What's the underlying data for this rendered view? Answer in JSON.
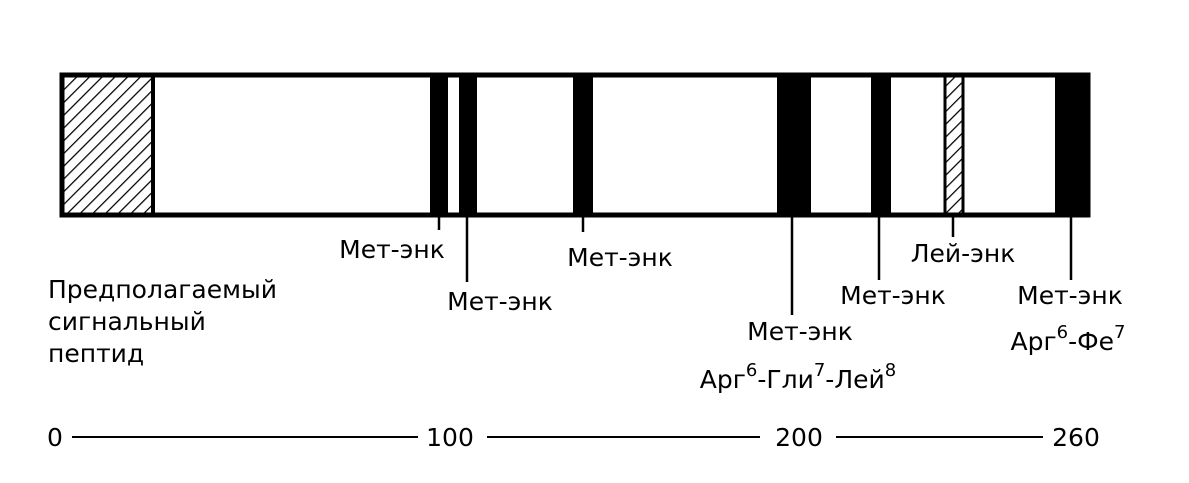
{
  "signal_peptide": {
    "lines": [
      "Предполагаемый",
      "сигнальный",
      "пептид"
    ]
  },
  "sites": [
    {
      "label": "Мет-энк"
    },
    {
      "label": "Мет-энк"
    },
    {
      "label": "Мет-энк"
    },
    {
      "label": "Мет-энк",
      "sequence": [
        {
          "base": "Арг",
          "sup": "6"
        },
        {
          "base": "-Гли",
          "sup": "7"
        },
        {
          "base": "-Лей",
          "sup": "8"
        }
      ]
    },
    {
      "label": "Мет-энк"
    },
    {
      "label": "Лей-энк"
    },
    {
      "label": "Мет-энк",
      "sequence": [
        {
          "base": "Арг",
          "sup": "6"
        },
        {
          "base": "-Фе",
          "sup": "7"
        }
      ]
    }
  ],
  "scale": {
    "ticks": [
      "0",
      "100",
      "200",
      "260"
    ]
  }
}
